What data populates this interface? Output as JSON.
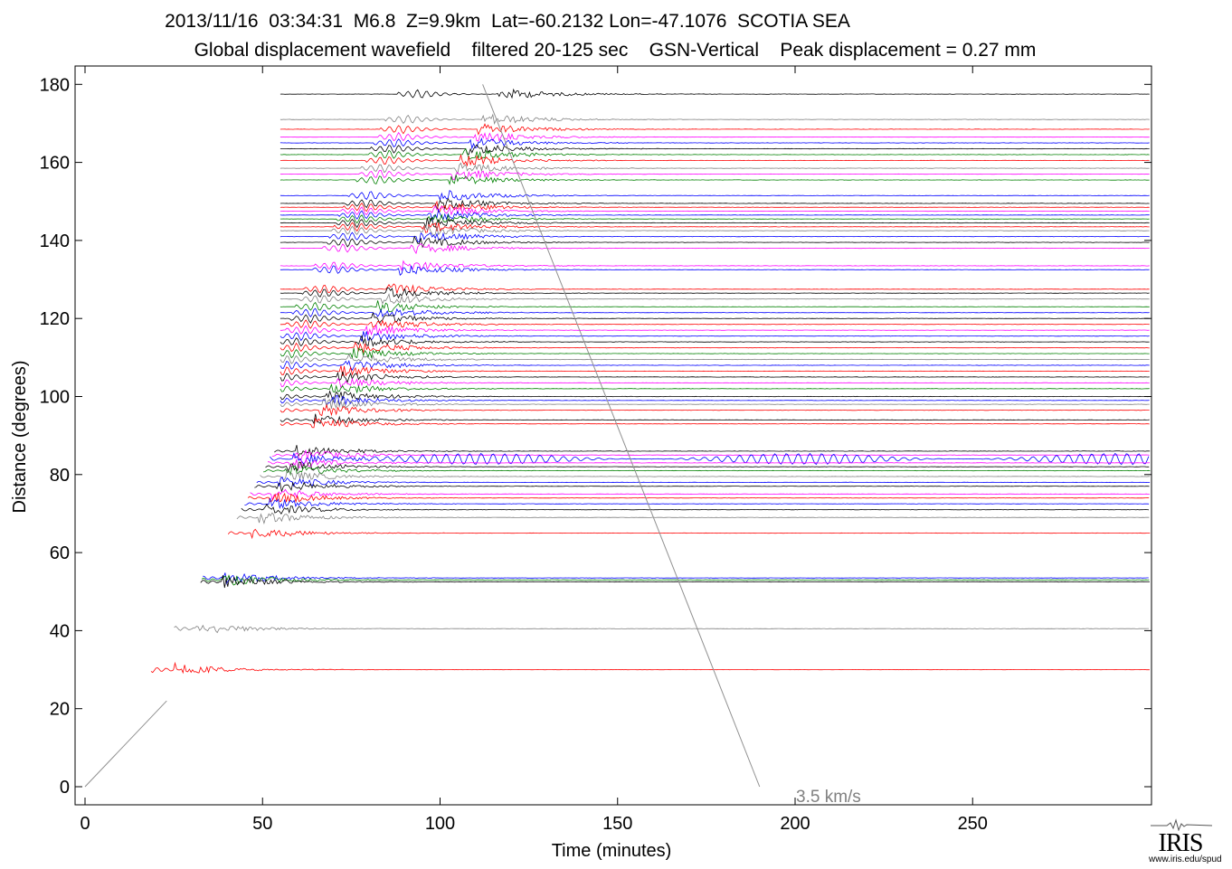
{
  "header": {
    "line1": "2013/11/16  03:34:31  M6.8  Z=9.9km  Lat=-60.2132 Lon=-47.1076  SCOTIA SEA",
    "line2": "Global displacement wavefield    filtered 20-125 sec    GSN-Vertical    Peak displacement = 0.27 mm"
  },
  "logo": {
    "text": "IRIS",
    "url": "www.iris.edu/spud"
  },
  "chart_data": {
    "type": "line",
    "title": "2013/11/16  03:34:31  M6.8  Z=9.9km  Lat=-60.2132 Lon=-47.1076  SCOTIA SEA",
    "subtitle": "Global displacement wavefield    filtered 20-125 sec    GSN-Vertical    Peak displacement = 0.27 mm",
    "xlabel": "Time (minutes)",
    "ylabel": "Distance (degrees)",
    "xlim": [
      -3,
      300
    ],
    "ylim": [
      -5,
      185
    ],
    "xticks": [
      0,
      50,
      100,
      150,
      200,
      250
    ],
    "yticks": [
      0,
      20,
      40,
      60,
      80,
      100,
      120,
      140,
      160,
      180
    ],
    "grid": false,
    "reference_line": {
      "label": "3.5 km/s",
      "x": [
        0,
        190
      ],
      "y": [
        0,
        0
      ],
      "slope_note": ""
    },
    "annotation": "3.5 km/s",
    "trace_colors": [
      "#000000",
      "#ff0000",
      "#0000ff",
      "#008000",
      "#ff00ff",
      "#808080",
      "#a0a0ff",
      "#cc0000"
    ],
    "traces": [
      {
        "distance": 177.5,
        "color": "#000000"
      },
      {
        "distance": 171,
        "color": "#808080"
      },
      {
        "distance": 168.5,
        "color": "#ff0000"
      },
      {
        "distance": 166.5,
        "color": "#ff00ff"
      },
      {
        "distance": 165,
        "color": "#0000ff"
      },
      {
        "distance": 163.5,
        "color": "#000000"
      },
      {
        "distance": 162,
        "color": "#008000"
      },
      {
        "distance": 160.5,
        "color": "#ff0000"
      },
      {
        "distance": 158.5,
        "color": "#808080"
      },
      {
        "distance": 157,
        "color": "#ff00ff"
      },
      {
        "distance": 155.5,
        "color": "#008000"
      },
      {
        "distance": 151.5,
        "color": "#0000ff"
      },
      {
        "distance": 149.5,
        "color": "#000000"
      },
      {
        "distance": 148.5,
        "color": "#ff0000"
      },
      {
        "distance": 147.5,
        "color": "#ff00ff"
      },
      {
        "distance": 146.5,
        "color": "#0000ff"
      },
      {
        "distance": 145.5,
        "color": "#008000"
      },
      {
        "distance": 144.5,
        "color": "#000000"
      },
      {
        "distance": 143.5,
        "color": "#ff0000"
      },
      {
        "distance": 142.5,
        "color": "#808080"
      },
      {
        "distance": 141,
        "color": "#0000ff"
      },
      {
        "distance": 139.5,
        "color": "#000000"
      },
      {
        "distance": 138,
        "color": "#ff00ff"
      },
      {
        "distance": 133.5,
        "color": "#ff00ff"
      },
      {
        "distance": 132.5,
        "color": "#0000ff"
      },
      {
        "distance": 127.5,
        "color": "#ff0000"
      },
      {
        "distance": 126.5,
        "color": "#000000"
      },
      {
        "distance": 125,
        "color": "#808080"
      },
      {
        "distance": 123,
        "color": "#008000"
      },
      {
        "distance": 121.5,
        "color": "#0000ff"
      },
      {
        "distance": 120,
        "color": "#000000"
      },
      {
        "distance": 118.5,
        "color": "#ff0000"
      },
      {
        "distance": 117,
        "color": "#ff00ff"
      },
      {
        "distance": 115.5,
        "color": "#0000ff"
      },
      {
        "distance": 114,
        "color": "#000000"
      },
      {
        "distance": 112.5,
        "color": "#ff0000"
      },
      {
        "distance": 111,
        "color": "#008000"
      },
      {
        "distance": 109.5,
        "color": "#808080"
      },
      {
        "distance": 108,
        "color": "#0000ff"
      },
      {
        "distance": 106.5,
        "color": "#ff0000"
      },
      {
        "distance": 105,
        "color": "#000000"
      },
      {
        "distance": 103.5,
        "color": "#ff00ff"
      },
      {
        "distance": 102,
        "color": "#008000"
      },
      {
        "distance": 100,
        "color": "#000000"
      },
      {
        "distance": 99,
        "color": "#0000ff"
      },
      {
        "distance": 98,
        "color": "#808080"
      },
      {
        "distance": 96.5,
        "color": "#ff0000"
      },
      {
        "distance": 94,
        "color": "#000000"
      },
      {
        "distance": 93,
        "color": "#ff0000"
      },
      {
        "distance": 86,
        "color": "#000000"
      },
      {
        "distance": 85,
        "color": "#ff00ff"
      },
      {
        "distance": 84,
        "color": "#0000ff"
      },
      {
        "distance": 83,
        "color": "#ff00ff"
      },
      {
        "distance": 82,
        "color": "#000000"
      },
      {
        "distance": 81,
        "color": "#008000"
      },
      {
        "distance": 79.5,
        "color": "#808080"
      },
      {
        "distance": 78,
        "color": "#0000ff"
      },
      {
        "distance": 77,
        "color": "#000000"
      },
      {
        "distance": 75,
        "color": "#ff00ff"
      },
      {
        "distance": 74,
        "color": "#ff0000"
      },
      {
        "distance": 72.5,
        "color": "#0000ff"
      },
      {
        "distance": 71,
        "color": "#000000"
      },
      {
        "distance": 69,
        "color": "#808080"
      },
      {
        "distance": 65,
        "color": "#ff0000"
      },
      {
        "distance": 53.5,
        "color": "#0000ff"
      },
      {
        "distance": 53,
        "color": "#008000"
      },
      {
        "distance": 52.5,
        "color": "#000000"
      },
      {
        "distance": 40.5,
        "color": "#808080"
      },
      {
        "distance": 30,
        "color": "#ff0000"
      }
    ]
  }
}
